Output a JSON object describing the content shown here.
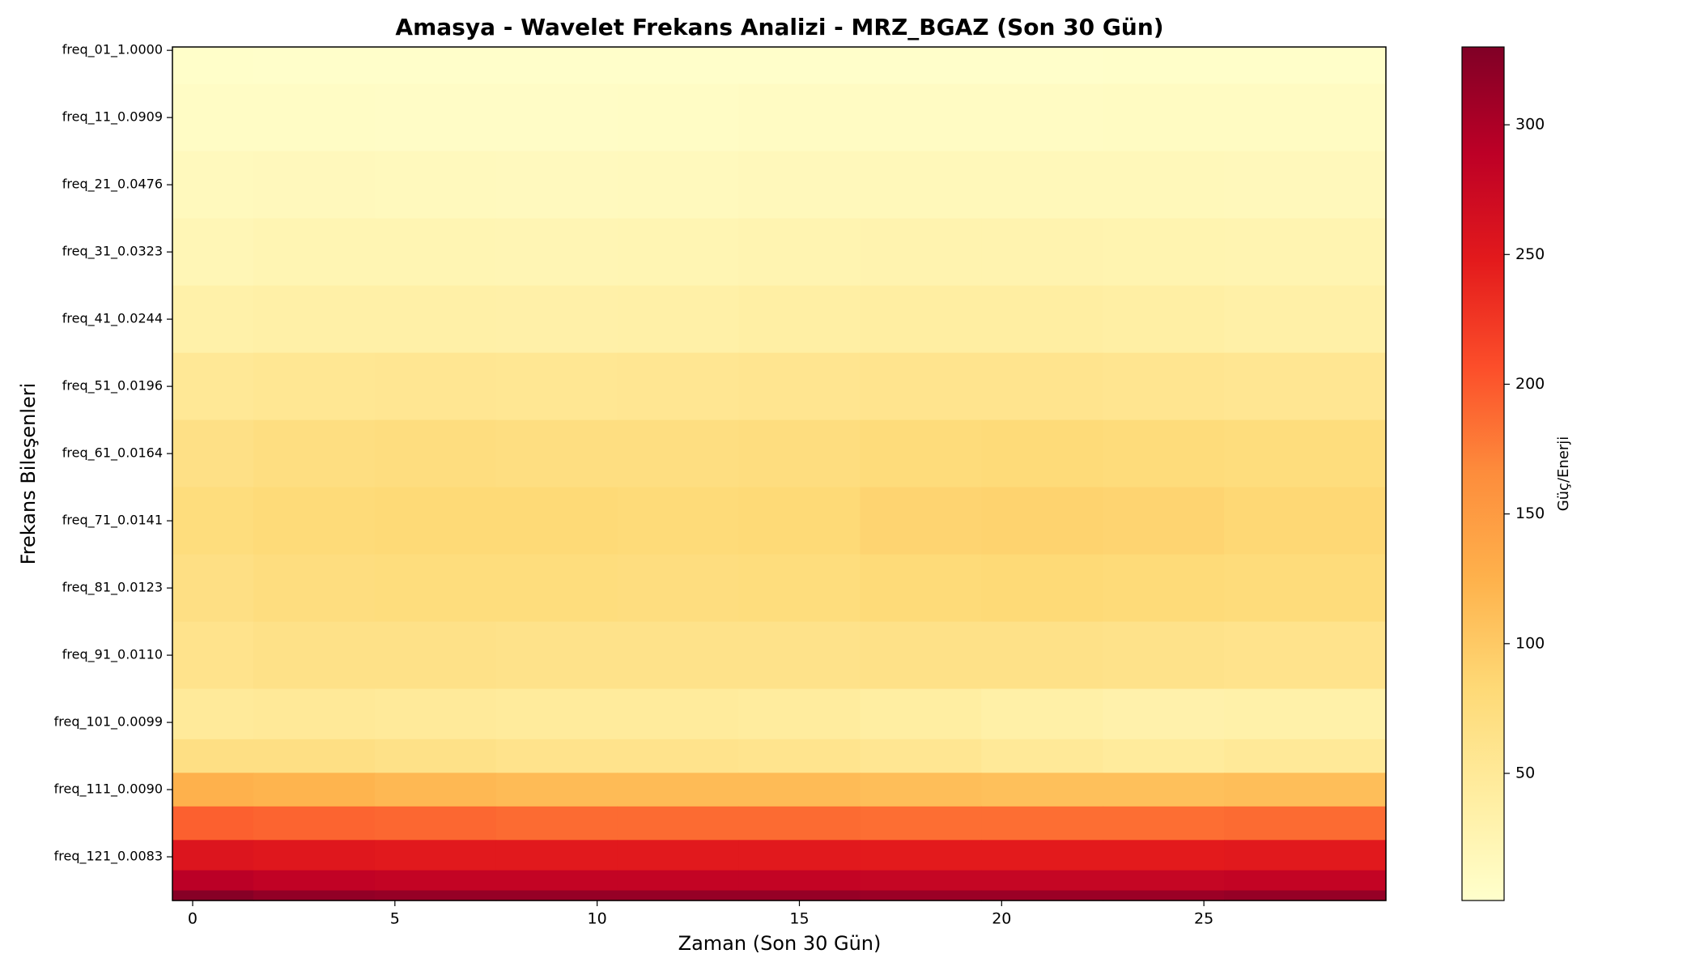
{
  "chart_data": {
    "type": "heatmap",
    "title": "Amasya - Wavelet Frekans Analizi - MRZ_BGAZ (Son 30 Gün)",
    "x_label": "Zaman (Son 30 Gün)",
    "y_label": "Frekans Bileşenleri",
    "colorbar_label": "Güç/Enerji",
    "x": [
      0,
      3,
      6,
      9,
      12,
      15,
      18,
      21,
      24,
      27
    ],
    "rows": [
      0,
      10,
      20,
      30,
      40,
      50,
      60,
      70,
      80,
      90,
      100,
      105,
      110,
      115,
      120,
      124,
      126
    ],
    "values": [
      [
        4,
        3,
        3,
        3,
        3,
        3,
        3,
        3,
        4,
        4
      ],
      [
        8,
        8,
        7,
        7,
        8,
        9,
        9,
        9,
        10,
        10
      ],
      [
        15,
        16,
        15,
        14,
        15,
        17,
        18,
        18,
        18,
        17
      ],
      [
        22,
        24,
        24,
        23,
        24,
        26,
        28,
        28,
        27,
        26
      ],
      [
        34,
        36,
        36,
        35,
        36,
        38,
        40,
        40,
        38,
        36
      ],
      [
        52,
        55,
        56,
        55,
        56,
        58,
        60,
        60,
        58,
        56
      ],
      [
        68,
        72,
        74,
        72,
        72,
        74,
        78,
        80,
        78,
        76
      ],
      [
        76,
        80,
        82,
        82,
        80,
        82,
        88,
        90,
        88,
        84
      ],
      [
        70,
        74,
        76,
        76,
        74,
        76,
        80,
        82,
        80,
        78
      ],
      [
        62,
        66,
        66,
        64,
        64,
        64,
        66,
        66,
        64,
        62
      ],
      [
        48,
        50,
        48,
        46,
        46,
        44,
        40,
        36,
        32,
        34
      ],
      [
        70,
        70,
        66,
        62,
        62,
        60,
        56,
        50,
        46,
        50
      ],
      [
        125,
        122,
        118,
        115,
        115,
        115,
        112,
        110,
        110,
        112
      ],
      [
        195,
        192,
        190,
        188,
        188,
        188,
        186,
        186,
        186,
        188
      ],
      [
        255,
        252,
        250,
        250,
        250,
        250,
        248,
        248,
        248,
        250
      ],
      [
        290,
        285,
        282,
        282,
        282,
        282,
        280,
        280,
        280,
        282
      ],
      [
        325,
        318,
        315,
        315,
        315,
        315,
        312,
        312,
        312,
        315
      ]
    ],
    "xlim": [
      -0.5,
      29.5
    ],
    "xticks": [
      0,
      5,
      10,
      15,
      20,
      25
    ],
    "ylim": [
      126.5,
      -0.5
    ],
    "yticks": [
      {
        "value": 0,
        "label": "freq_01_1.0000"
      },
      {
        "value": 10,
        "label": "freq_11_0.0909"
      },
      {
        "value": 20,
        "label": "freq_21_0.0476"
      },
      {
        "value": 30,
        "label": "freq_31_0.0323"
      },
      {
        "value": 40,
        "label": "freq_41_0.0244"
      },
      {
        "value": 50,
        "label": "freq_51_0.0196"
      },
      {
        "value": 60,
        "label": "freq_61_0.0164"
      },
      {
        "value": 70,
        "label": "freq_71_0.0141"
      },
      {
        "value": 80,
        "label": "freq_81_0.0123"
      },
      {
        "value": 90,
        "label": "freq_91_0.0110"
      },
      {
        "value": 100,
        "label": "freq_101_0.0099"
      },
      {
        "value": 110,
        "label": "freq_111_0.0090"
      },
      {
        "value": 120,
        "label": "freq_121_0.0083"
      }
    ],
    "clim": [
      1,
      330
    ],
    "cticks": [
      50,
      100,
      150,
      200,
      250,
      300
    ],
    "colormap": [
      "#ffffcc",
      "#ffeda0",
      "#fed976",
      "#feb24c",
      "#fd8d3c",
      "#fc4e2a",
      "#e31a1c",
      "#bd0026",
      "#800026"
    ]
  }
}
